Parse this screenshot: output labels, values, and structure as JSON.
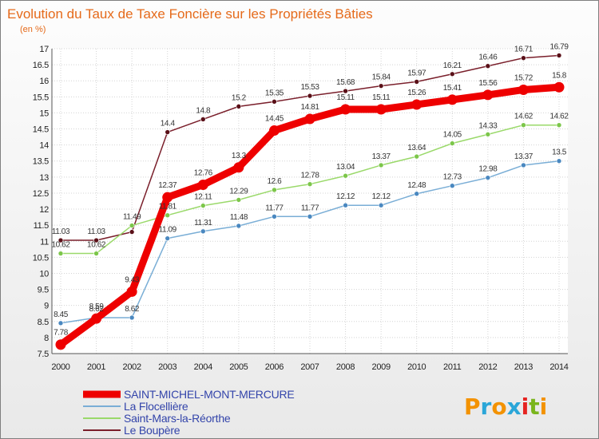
{
  "chart_data": {
    "type": "line",
    "title": "Evolution du Taux de Taxe Foncière sur les Propriétés Bâties",
    "subtitle": "(en %)",
    "x": [
      "2000",
      "2001",
      "2002",
      "2003",
      "2004",
      "2005",
      "2006",
      "2007",
      "2008",
      "2009",
      "2010",
      "2011",
      "2012",
      "2013",
      "2014"
    ],
    "ylim": [
      7.5,
      17
    ],
    "yticks": [
      "7.5",
      "8",
      "8.5",
      "9",
      "9.5",
      "10",
      "10.5",
      "11",
      "11.5",
      "12",
      "12.5",
      "13",
      "13.5",
      "14",
      "14.5",
      "15",
      "15.5",
      "16",
      "16.5",
      "17"
    ],
    "grid": true,
    "legend_position": "bottom-left",
    "series": [
      {
        "name": "Le Boupère",
        "color": "#7a1f2b",
        "marker": "#5a1018",
        "values": [
          11.03,
          11.03,
          11.29,
          14.4,
          14.8,
          15.2,
          15.35,
          15.53,
          15.68,
          15.84,
          15.97,
          16.21,
          16.46,
          16.71,
          16.79
        ],
        "labels": [
          "11.03",
          "11.03",
          "11.29",
          "14.4",
          "14.8",
          "15.2",
          "15.35",
          "15.53",
          "15.68",
          "15.84",
          "15.97",
          "16.21",
          "16.46",
          "16.71",
          "16.79"
        ],
        "show_labels": [
          true,
          true,
          false,
          true,
          true,
          true,
          true,
          true,
          true,
          true,
          true,
          true,
          true,
          true,
          true
        ]
      },
      {
        "name": "Saint-Mars-la-Réorthe",
        "color": "#9ad96a",
        "marker": "#7cc64a",
        "values": [
          10.62,
          10.62,
          11.49,
          11.81,
          12.11,
          12.29,
          12.6,
          12.78,
          13.04,
          13.37,
          13.64,
          14.05,
          14.33,
          14.62,
          14.62
        ],
        "labels": [
          "10.62",
          "10.62",
          "11.49",
          "11.81",
          "12.11",
          "12.29",
          "12.6",
          "12.78",
          "13.04",
          "13.37",
          "13.64",
          "14.05",
          "14.33",
          "14.62",
          "14.62"
        ],
        "show_labels": [
          true,
          true,
          true,
          true,
          true,
          true,
          true,
          true,
          true,
          true,
          true,
          true,
          true,
          true,
          true
        ]
      },
      {
        "name": "La Flocellière",
        "color": "#7aaed6",
        "marker": "#4a88c0",
        "values": [
          8.45,
          8.62,
          8.62,
          11.09,
          11.31,
          11.48,
          11.77,
          11.77,
          12.12,
          12.12,
          12.48,
          12.73,
          12.98,
          13.37,
          13.5
        ],
        "labels": [
          "8.45",
          "8.62",
          "8.62",
          "11.09",
          "11.31",
          "11.48",
          "11.77",
          "11.77",
          "12.12",
          "12.12",
          "12.48",
          "12.73",
          "12.98",
          "13.37",
          "13.5"
        ],
        "show_labels": [
          true,
          true,
          true,
          true,
          true,
          true,
          true,
          true,
          true,
          true,
          true,
          true,
          true,
          true,
          true
        ]
      },
      {
        "name": "SAINT-MICHEL-MONT-MERCURE",
        "color": "#ee0000",
        "marker": "#ee0000",
        "values": [
          7.78,
          8.59,
          9.43,
          12.37,
          12.76,
          13.3,
          14.45,
          14.81,
          15.11,
          15.11,
          15.26,
          15.41,
          15.56,
          15.72,
          15.8
        ],
        "labels": [
          "7.78",
          "8.59",
          "9.43",
          "12.37",
          "12.76",
          "13.3",
          "14.45",
          "14.81",
          "15.11",
          "15.11",
          "15.26",
          "15.41",
          "15.56",
          "15.72",
          "15.8"
        ],
        "show_labels": [
          true,
          true,
          true,
          true,
          true,
          true,
          true,
          true,
          true,
          true,
          true,
          true,
          true,
          true,
          true
        ],
        "bold": true
      }
    ]
  },
  "legend": [
    {
      "label": "SAINT-MICHEL-MONT-MERCURE",
      "color": "#ee0000",
      "bold": true
    },
    {
      "label": "La Flocellière",
      "color": "#7aaed6"
    },
    {
      "label": "Saint-Mars-la-Réorthe",
      "color": "#9ad96a"
    },
    {
      "label": "Le Boupère",
      "color": "#7a1f2b"
    }
  ],
  "logo": {
    "text": "Proxiti",
    "letter_colors": [
      "#f39200",
      "#2aa6d8",
      "#f39200",
      "#2aa6d8",
      "#e52421",
      "#7ab51d",
      "#f39200"
    ]
  }
}
